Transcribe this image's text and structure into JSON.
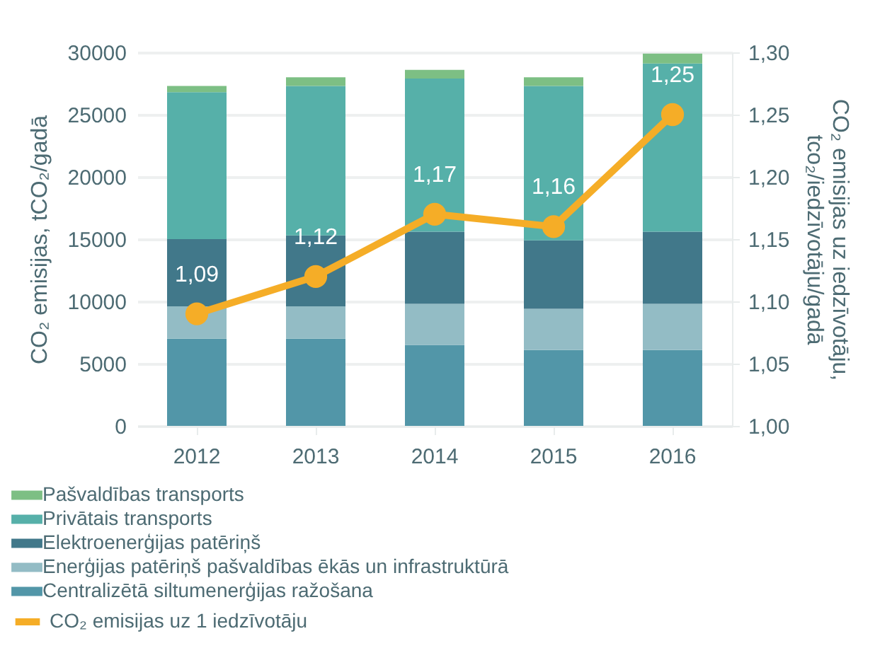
{
  "chart_data": {
    "type": "bar",
    "stacked": true,
    "categories": [
      "2012",
      "2013",
      "2014",
      "2015",
      "2016"
    ],
    "ylabel": "CO₂ emisijas, tCO₂/gadā",
    "y2label": "CO₂ emisijas uz iedzīvotāju,\ntco₂/iedzīvotāju/gadā",
    "ylim": [
      0,
      30000
    ],
    "yticks": [
      0,
      5000,
      10000,
      15000,
      20000,
      25000,
      30000
    ],
    "y2lim": [
      1.0,
      1.3
    ],
    "y2ticks": [
      {
        "value": 1.0,
        "label": "1,00"
      },
      {
        "value": 1.05,
        "label": "1,05"
      },
      {
        "value": 1.1,
        "label": "1,10"
      },
      {
        "value": 1.15,
        "label": "1,15"
      },
      {
        "value": 1.2,
        "label": "1,20"
      },
      {
        "value": 1.25,
        "label": "1,25"
      },
      {
        "value": 1.3,
        "label": "1,30"
      }
    ],
    "grid": "y",
    "legend": "bottom",
    "series": [
      {
        "name": "Centralizētā siltumenerģijas ražošana",
        "color": "#5296a8",
        "values": [
          7000,
          7000,
          6500,
          6100,
          6100
        ]
      },
      {
        "name": "Enerģijas patēriņš pašvaldības ēkās un infrastruktūrā",
        "color": "#93bcc5",
        "values": [
          2600,
          2600,
          3300,
          3300,
          3700
        ]
      },
      {
        "name": "Elektroenerģijas patēriņš",
        "color": "#41788a",
        "values": [
          5400,
          5700,
          5800,
          5500,
          5800
        ]
      },
      {
        "name": "Privātais transports",
        "color": "#56b0a9",
        "values": [
          11800,
          12000,
          12300,
          12400,
          13500
        ]
      },
      {
        "name": "Pašvaldības transports",
        "color": "#7dbf84",
        "values": [
          500,
          700,
          700,
          700,
          800
        ]
      },
      {
        "name": "CO₂ emisijas uz 1 iedzīvotāju",
        "type": "line",
        "axis": "y2",
        "color": "#f5ad27",
        "marker": "circle",
        "values": [
          1.09,
          1.12,
          1.17,
          1.16,
          1.25
        ],
        "value_labels": [
          "1,09",
          "1,12",
          "1,17",
          "1,16",
          "1,25"
        ]
      }
    ]
  }
}
